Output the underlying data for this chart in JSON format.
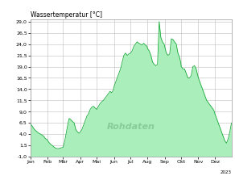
{
  "title": "Wassertemperatur [°C]",
  "watermark": "Rohdaten",
  "year_label": "2023",
  "xlim": [
    0,
    364
  ],
  "ylim": [
    -1.0,
    29.5
  ],
  "yticks": [
    -1.0,
    1.5,
    4.0,
    6.5,
    9.0,
    11.5,
    14.0,
    16.5,
    19.0,
    21.5,
    24.0,
    26.5,
    29.0
  ],
  "ytick_labels": [
    "-1,0",
    "1,5",
    "4,0",
    "6,5",
    "9,0",
    "11,5",
    "14,0",
    "16,5",
    "19,0",
    "21,5",
    "24,0",
    "26,5",
    "29,0"
  ],
  "month_labels": [
    "Jan",
    "Feb",
    "Mär",
    "Apr",
    "Mai",
    "Jun",
    "Jul",
    "Aug",
    "Sep",
    "Okt",
    "Nov",
    "Dez"
  ],
  "month_positions": [
    0,
    31,
    59,
    90,
    120,
    151,
    181,
    212,
    243,
    273,
    304,
    334
  ],
  "line_color": "#1aaa3a",
  "fill_color": "#aaeebb",
  "background_color": "#ffffff",
  "grid_color": "#bbbbbb",
  "title_fontsize": 5.5,
  "tick_fontsize": 4.5,
  "watermark_fontsize": 8,
  "data": [
    [
      0,
      6.2
    ],
    [
      3,
      5.8
    ],
    [
      6,
      5.2
    ],
    [
      9,
      4.8
    ],
    [
      12,
      4.5
    ],
    [
      15,
      4.2
    ],
    [
      18,
      4.0
    ],
    [
      21,
      3.8
    ],
    [
      24,
      3.5
    ],
    [
      27,
      3.0
    ],
    [
      30,
      2.8
    ],
    [
      33,
      2.2
    ],
    [
      36,
      1.8
    ],
    [
      39,
      1.5
    ],
    [
      42,
      1.2
    ],
    [
      45,
      0.9
    ],
    [
      48,
      0.8
    ],
    [
      51,
      0.8
    ],
    [
      54,
      0.9
    ],
    [
      57,
      1.0
    ],
    [
      59,
      1.1
    ],
    [
      62,
      2.5
    ],
    [
      65,
      4.5
    ],
    [
      68,
      6.5
    ],
    [
      70,
      7.5
    ],
    [
      73,
      7.2
    ],
    [
      76,
      6.8
    ],
    [
      79,
      6.5
    ],
    [
      82,
      5.0
    ],
    [
      85,
      4.5
    ],
    [
      88,
      4.2
    ],
    [
      90,
      4.5
    ],
    [
      93,
      5.0
    ],
    [
      96,
      6.0
    ],
    [
      99,
      7.0
    ],
    [
      102,
      8.0
    ],
    [
      105,
      8.5
    ],
    [
      108,
      9.5
    ],
    [
      111,
      10.0
    ],
    [
      114,
      10.2
    ],
    [
      117,
      9.8
    ],
    [
      120,
      9.5
    ],
    [
      123,
      10.2
    ],
    [
      126,
      10.8
    ],
    [
      129,
      11.2
    ],
    [
      132,
      11.5
    ],
    [
      135,
      12.0
    ],
    [
      138,
      12.5
    ],
    [
      141,
      13.0
    ],
    [
      144,
      13.5
    ],
    [
      147,
      13.2
    ],
    [
      150,
      13.8
    ],
    [
      151,
      14.5
    ],
    [
      154,
      15.5
    ],
    [
      157,
      16.5
    ],
    [
      160,
      17.5
    ],
    [
      163,
      18.5
    ],
    [
      166,
      20.0
    ],
    [
      169,
      21.5
    ],
    [
      172,
      22.0
    ],
    [
      175,
      21.5
    ],
    [
      178,
      21.8
    ],
    [
      181,
      22.0
    ],
    [
      184,
      22.5
    ],
    [
      187,
      23.5
    ],
    [
      190,
      24.0
    ],
    [
      193,
      24.5
    ],
    [
      196,
      24.2
    ],
    [
      199,
      24.0
    ],
    [
      202,
      23.8
    ],
    [
      205,
      24.2
    ],
    [
      208,
      23.8
    ],
    [
      211,
      23.5
    ],
    [
      212,
      23.0
    ],
    [
      215,
      22.5
    ],
    [
      218,
      21.5
    ],
    [
      221,
      20.0
    ],
    [
      224,
      19.5
    ],
    [
      227,
      19.2
    ],
    [
      230,
      19.5
    ],
    [
      233,
      29.0
    ],
    [
      236,
      25.5
    ],
    [
      239,
      24.5
    ],
    [
      242,
      24.0
    ],
    [
      243,
      23.5
    ],
    [
      246,
      22.0
    ],
    [
      249,
      21.5
    ],
    [
      252,
      21.8
    ],
    [
      255,
      25.2
    ],
    [
      258,
      25.0
    ],
    [
      261,
      24.5
    ],
    [
      264,
      24.0
    ],
    [
      267,
      22.0
    ],
    [
      270,
      21.0
    ],
    [
      272,
      20.0
    ],
    [
      273,
      19.0
    ],
    [
      276,
      18.5
    ],
    [
      279,
      18.5
    ],
    [
      282,
      17.5
    ],
    [
      285,
      16.5
    ],
    [
      288,
      16.5
    ],
    [
      291,
      17.0
    ],
    [
      294,
      19.0
    ],
    [
      297,
      19.2
    ],
    [
      300,
      18.5
    ],
    [
      303,
      17.0
    ],
    [
      304,
      16.5
    ],
    [
      307,
      15.5
    ],
    [
      310,
      14.5
    ],
    [
      313,
      13.5
    ],
    [
      316,
      12.5
    ],
    [
      319,
      11.5
    ],
    [
      322,
      11.0
    ],
    [
      325,
      10.5
    ],
    [
      328,
      10.0
    ],
    [
      331,
      9.5
    ],
    [
      333,
      9.0
    ],
    [
      334,
      8.5
    ],
    [
      337,
      7.5
    ],
    [
      340,
      6.5
    ],
    [
      343,
      5.5
    ],
    [
      346,
      4.5
    ],
    [
      349,
      3.5
    ],
    [
      352,
      2.5
    ],
    [
      355,
      2.0
    ],
    [
      358,
      3.0
    ],
    [
      361,
      4.5
    ],
    [
      364,
      6.5
    ]
  ]
}
